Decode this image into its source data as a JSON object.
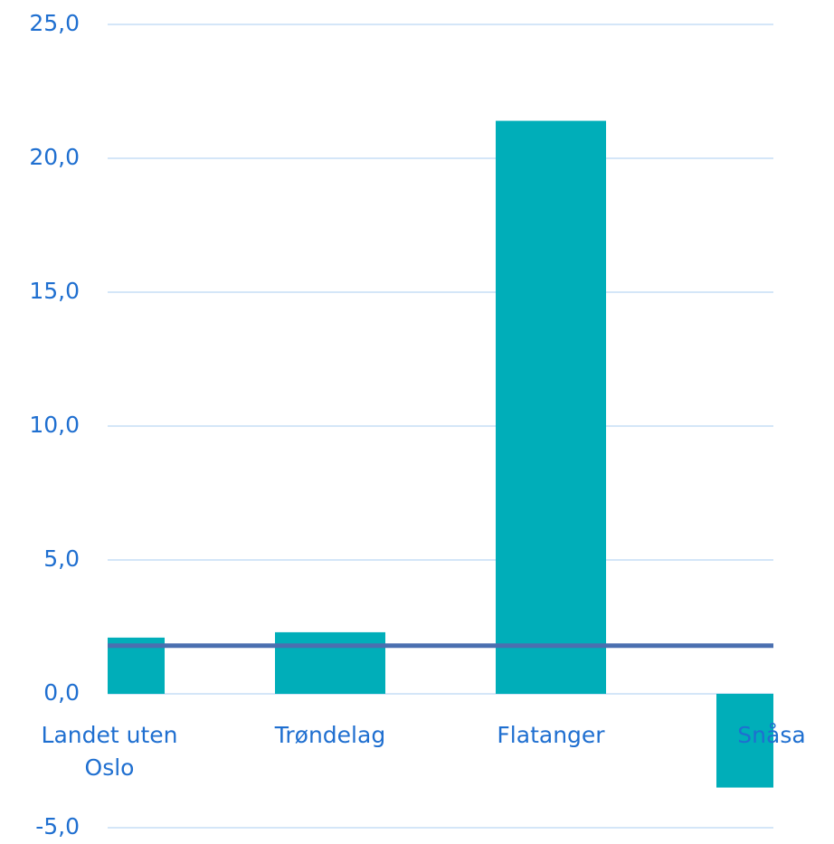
{
  "chart_data": {
    "type": "bar",
    "categories": [
      "Landet uten Oslo",
      "Trøndelag",
      "Flatanger",
      "Snåsa"
    ],
    "values": [
      2.1,
      2.3,
      21.4,
      -3.5
    ],
    "color": "#00aeb9",
    "reference_line": {
      "value": 1.8,
      "color": "#4a6fb0"
    },
    "ylim": [
      -5,
      25
    ],
    "yticks": [
      {
        "value": -5,
        "label": "-5,0"
      },
      {
        "value": 0,
        "label": "0,0"
      },
      {
        "value": 5,
        "label": "5,0"
      },
      {
        "value": 10,
        "label": "10,0"
      },
      {
        "value": 15,
        "label": "15,0"
      },
      {
        "value": 20,
        "label": "20,0"
      },
      {
        "value": 25,
        "label": "25,0"
      }
    ],
    "grid": true
  }
}
